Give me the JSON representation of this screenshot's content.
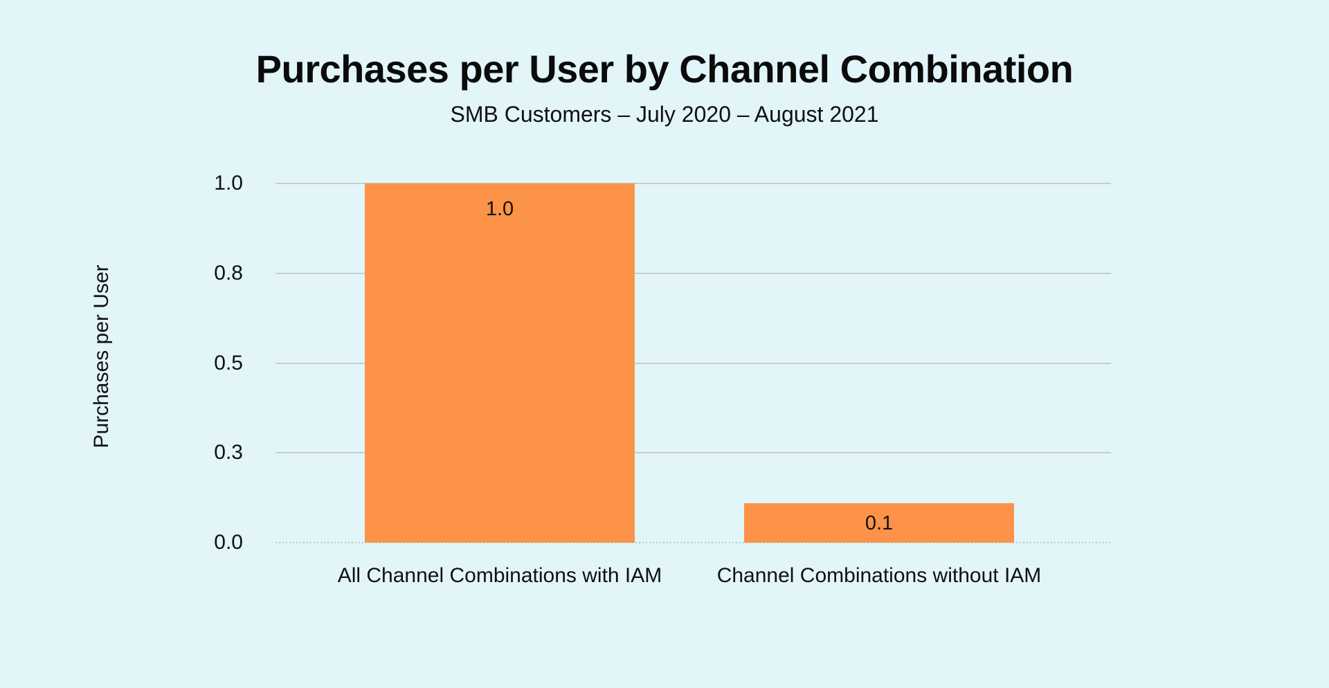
{
  "chart_data": {
    "type": "bar",
    "title": "Purchases per User by Channel Combination",
    "subtitle": "SMB Customers – July 2020 – August 2021",
    "ylabel": "Purchases per User",
    "xlabel": "",
    "categories": [
      "All Channel Combinations with IAM",
      "Channel Combinations without IAM"
    ],
    "series": [
      {
        "name": "Purchases per User",
        "values": [
          1.0,
          0.11
        ],
        "data_labels": [
          "1.0",
          "0.1"
        ]
      }
    ],
    "values": [
      1.0,
      0.11
    ],
    "data_labels": [
      "1.0",
      "0.1"
    ],
    "ylim": [
      0,
      1.0
    ],
    "yticks": [
      {
        "value": 0.0,
        "label": "0.0"
      },
      {
        "value": 0.25,
        "label": "0.3"
      },
      {
        "value": 0.5,
        "label": "0.5"
      },
      {
        "value": 0.75,
        "label": "0.8"
      },
      {
        "value": 1.0,
        "label": "1.0"
      }
    ],
    "grid": "horizontal",
    "zero_line_style": "dotted",
    "legend_position": "none",
    "colors": {
      "background": "#e2f5f9",
      "bar": "#fc9348",
      "gridline": "#c7cdd0",
      "zero_line": "#bfc6c9",
      "text": "#0e0e0e"
    }
  }
}
